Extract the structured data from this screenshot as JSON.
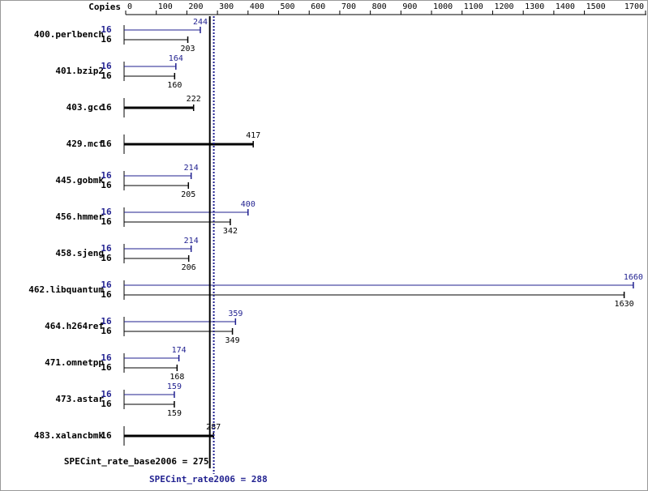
{
  "chart_data": {
    "type": "spec-bar",
    "copies_label": "Copies",
    "xlim": [
      0,
      1700
    ],
    "xticks": [
      0,
      100,
      200,
      300,
      400,
      500,
      600,
      700,
      800,
      900,
      1000,
      1100,
      1200,
      1300,
      1400,
      1500,
      1700
    ],
    "categories": [
      "400.perlbench",
      "401.bzip2",
      "403.gcc",
      "429.mcf",
      "445.gobmk",
      "456.hmmer",
      "458.sjeng",
      "462.libquantum",
      "464.h264ref",
      "471.omnetpp",
      "473.astar",
      "483.xalancbmk"
    ],
    "series": [
      {
        "color": "#1f1f8f",
        "copies": [
          16,
          16,
          null,
          null,
          16,
          16,
          16,
          16,
          16,
          16,
          16,
          null
        ],
        "values": [
          244,
          164,
          null,
          null,
          214,
          400,
          214,
          1660,
          359,
          174,
          159,
          null
        ]
      },
      {
        "color": "#000000",
        "copies": [
          16,
          16,
          16,
          16,
          16,
          16,
          16,
          16,
          16,
          16,
          16,
          16
        ],
        "values": [
          203,
          160,
          222,
          417,
          205,
          342,
          206,
          1630,
          349,
          168,
          159,
          287
        ]
      }
    ],
    "references": [
      {
        "label": "SPECint_rate_base2006 = 275",
        "value": 275,
        "color": "#000000"
      },
      {
        "label": "SPECint_rate2006 = 288",
        "value": 288,
        "color": "#1f1f8f"
      }
    ]
  }
}
